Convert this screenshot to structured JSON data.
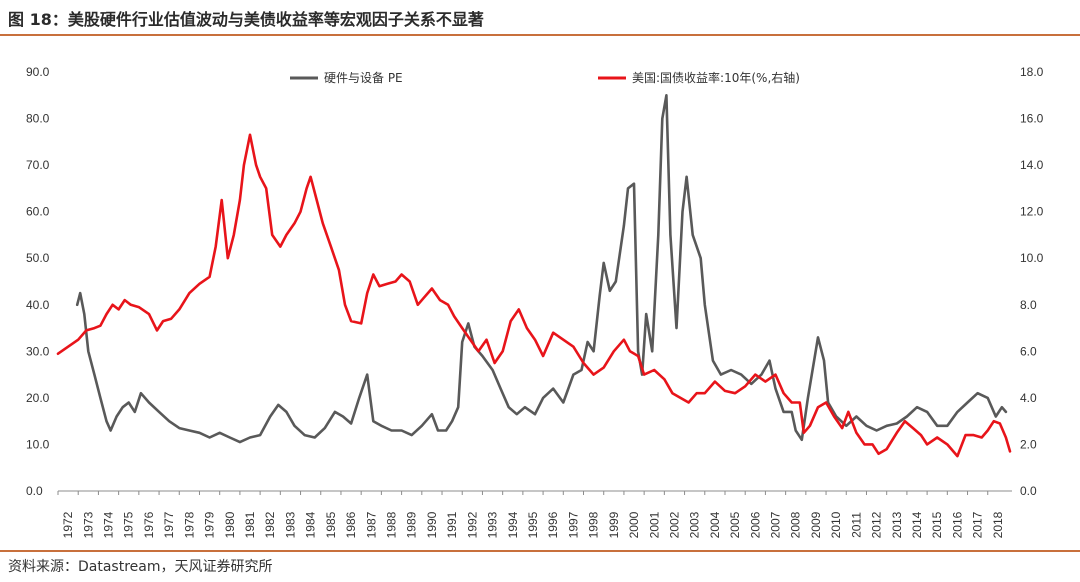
{
  "figure": {
    "title": "图 18：美股硬件行业估值波动与美债收益率等宏观因子关系不显著",
    "source": "资料来源：Datastream，天风证券研究所"
  },
  "chart_data": {
    "type": "line",
    "title": "图 18：美股硬件行业估值波动与美债收益率等宏观因子关系不显著",
    "x_ticks": [
      "1972",
      "1973",
      "1974",
      "1975",
      "1976",
      "1977",
      "1978",
      "1979",
      "1980",
      "1981",
      "1982",
      "1983",
      "1984",
      "1985",
      "1986",
      "1987",
      "1988",
      "1989",
      "1990",
      "1991",
      "1992",
      "1993",
      "1994",
      "1995",
      "1996",
      "1997",
      "1998",
      "1999",
      "2000",
      "2001",
      "2002",
      "2003",
      "2004",
      "2005",
      "2006",
      "2007",
      "2008",
      "2009",
      "2010",
      "2011",
      "2012",
      "2013",
      "2014",
      "2015",
      "2016",
      "2017",
      "2018"
    ],
    "x_range": [
      1972,
      2019.2
    ],
    "y_left": {
      "range": [
        0,
        90
      ],
      "ticks": [
        "0.0",
        "10.0",
        "20.0",
        "30.0",
        "40.0",
        "50.0",
        "60.0",
        "70.0",
        "80.0",
        "90.0"
      ]
    },
    "y_right": {
      "range": [
        0,
        18
      ],
      "ticks": [
        "0.0",
        "2.0",
        "4.0",
        "6.0",
        "8.0",
        "10.0",
        "12.0",
        "14.0",
        "16.0",
        "18.0"
      ]
    },
    "legend_position": "top",
    "grid": false,
    "series": [
      {
        "name": "硬件与设备 PE",
        "axis": "left",
        "color": "#595959",
        "points": [
          [
            1972.95,
            40
          ],
          [
            1973.1,
            42.5
          ],
          [
            1973.3,
            38
          ],
          [
            1973.5,
            30
          ],
          [
            1973.8,
            25
          ],
          [
            1974.1,
            20
          ],
          [
            1974.4,
            15
          ],
          [
            1974.6,
            13
          ],
          [
            1974.9,
            16
          ],
          [
            1975.2,
            18
          ],
          [
            1975.5,
            19
          ],
          [
            1975.8,
            17
          ],
          [
            1976.1,
            21
          ],
          [
            1976.5,
            19
          ],
          [
            1977,
            17
          ],
          [
            1977.5,
            15
          ],
          [
            1978,
            13.5
          ],
          [
            1978.5,
            13
          ],
          [
            1979,
            12.5
          ],
          [
            1979.5,
            11.5
          ],
          [
            1980,
            12.5
          ],
          [
            1980.5,
            11.5
          ],
          [
            1981,
            10.5
          ],
          [
            1981.5,
            11.5
          ],
          [
            1982,
            12
          ],
          [
            1982.5,
            16
          ],
          [
            1982.9,
            18.5
          ],
          [
            1983.3,
            17
          ],
          [
            1983.7,
            14
          ],
          [
            1984.2,
            12
          ],
          [
            1984.7,
            11.5
          ],
          [
            1985.2,
            13.5
          ],
          [
            1985.7,
            17
          ],
          [
            1986.1,
            16
          ],
          [
            1986.5,
            14.5
          ],
          [
            1986.9,
            20
          ],
          [
            1987.3,
            25
          ],
          [
            1987.6,
            15
          ],
          [
            1988,
            14
          ],
          [
            1988.5,
            13
          ],
          [
            1989,
            13
          ],
          [
            1989.5,
            12
          ],
          [
            1990,
            14
          ],
          [
            1990.5,
            16.5
          ],
          [
            1990.8,
            13
          ],
          [
            1991.2,
            13
          ],
          [
            1991.5,
            15
          ],
          [
            1991.8,
            18
          ],
          [
            1992,
            32
          ],
          [
            1992.3,
            36
          ],
          [
            1992.6,
            31
          ],
          [
            1993,
            29
          ],
          [
            1993.5,
            26
          ],
          [
            1993.9,
            22
          ],
          [
            1994.3,
            18
          ],
          [
            1994.7,
            16.5
          ],
          [
            1995.1,
            18
          ],
          [
            1995.6,
            16.5
          ],
          [
            1996,
            20
          ],
          [
            1996.5,
            22
          ],
          [
            1997,
            19
          ],
          [
            1997.5,
            25
          ],
          [
            1997.9,
            26
          ],
          [
            1998.2,
            32
          ],
          [
            1998.5,
            30
          ],
          [
            1998.8,
            42
          ],
          [
            1999,
            49
          ],
          [
            1999.3,
            43
          ],
          [
            1999.6,
            45
          ],
          [
            2000,
            57
          ],
          [
            2000.2,
            65
          ],
          [
            2000.5,
            66
          ],
          [
            2000.7,
            30
          ],
          [
            2000.9,
            25
          ],
          [
            2001.1,
            38
          ],
          [
            2001.4,
            30
          ],
          [
            2001.7,
            55
          ],
          [
            2001.9,
            80
          ],
          [
            2002.1,
            85
          ],
          [
            2002.3,
            55
          ],
          [
            2002.6,
            35
          ],
          [
            2002.9,
            60
          ],
          [
            2003.1,
            67.5
          ],
          [
            2003.4,
            55
          ],
          [
            2003.8,
            50
          ],
          [
            2004,
            40
          ],
          [
            2004.4,
            28
          ],
          [
            2004.8,
            25
          ],
          [
            2005.3,
            26
          ],
          [
            2005.8,
            25
          ],
          [
            2006.3,
            23
          ],
          [
            2006.8,
            25
          ],
          [
            2007.2,
            28
          ],
          [
            2007.5,
            22
          ],
          [
            2007.9,
            17
          ],
          [
            2008.3,
            17
          ],
          [
            2008.5,
            13
          ],
          [
            2008.8,
            11
          ],
          [
            2009.1,
            20
          ],
          [
            2009.6,
            33
          ],
          [
            2009.9,
            28
          ],
          [
            2010.1,
            19
          ],
          [
            2010.5,
            16
          ],
          [
            2011,
            14
          ],
          [
            2011.5,
            16
          ],
          [
            2012,
            14
          ],
          [
            2012.5,
            13
          ],
          [
            2013,
            14
          ],
          [
            2013.5,
            14.5
          ],
          [
            2014,
            16
          ],
          [
            2014.5,
            18
          ],
          [
            2015,
            17
          ],
          [
            2015.5,
            14
          ],
          [
            2016,
            14
          ],
          [
            2016.5,
            17
          ],
          [
            2017,
            19
          ],
          [
            2017.5,
            21
          ],
          [
            2018,
            20
          ],
          [
            2018.4,
            16
          ],
          [
            2018.7,
            18
          ],
          [
            2018.9,
            17
          ]
        ]
      },
      {
        "name": "美国:国债收益率:10年(%,右轴)",
        "axis": "right",
        "color": "#e8141a",
        "points": [
          [
            1972,
            5.9
          ],
          [
            1972.5,
            6.2
          ],
          [
            1973,
            6.5
          ],
          [
            1973.4,
            6.9
          ],
          [
            1973.8,
            7
          ],
          [
            1974.1,
            7.1
          ],
          [
            1974.4,
            7.6
          ],
          [
            1974.7,
            8
          ],
          [
            1975,
            7.8
          ],
          [
            1975.3,
            8.2
          ],
          [
            1975.6,
            8
          ],
          [
            1976,
            7.9
          ],
          [
            1976.5,
            7.6
          ],
          [
            1976.9,
            6.9
          ],
          [
            1977.2,
            7.3
          ],
          [
            1977.6,
            7.4
          ],
          [
            1978,
            7.8
          ],
          [
            1978.5,
            8.5
          ],
          [
            1979,
            8.9
          ],
          [
            1979.5,
            9.2
          ],
          [
            1979.8,
            10.5
          ],
          [
            1980.1,
            12.5
          ],
          [
            1980.4,
            10
          ],
          [
            1980.7,
            11
          ],
          [
            1981,
            12.5
          ],
          [
            1981.2,
            14
          ],
          [
            1981.5,
            15.3
          ],
          [
            1981.8,
            14
          ],
          [
            1982,
            13.5
          ],
          [
            1982.3,
            13
          ],
          [
            1982.6,
            11
          ],
          [
            1983,
            10.5
          ],
          [
            1983.3,
            11
          ],
          [
            1983.7,
            11.5
          ],
          [
            1984,
            12
          ],
          [
            1984.3,
            13
          ],
          [
            1984.5,
            13.5
          ],
          [
            1984.8,
            12.5
          ],
          [
            1985.1,
            11.5
          ],
          [
            1985.5,
            10.5
          ],
          [
            1985.9,
            9.5
          ],
          [
            1986.2,
            8
          ],
          [
            1986.5,
            7.3
          ],
          [
            1987,
            7.2
          ],
          [
            1987.3,
            8.5
          ],
          [
            1987.6,
            9.3
          ],
          [
            1987.9,
            8.8
          ],
          [
            1988.3,
            8.9
          ],
          [
            1988.7,
            9
          ],
          [
            1989,
            9.3
          ],
          [
            1989.4,
            9
          ],
          [
            1989.8,
            8
          ],
          [
            1990.1,
            8.3
          ],
          [
            1990.5,
            8.7
          ],
          [
            1990.9,
            8.2
          ],
          [
            1991.3,
            8
          ],
          [
            1991.6,
            7.5
          ],
          [
            1992,
            7
          ],
          [
            1992.4,
            6.5
          ],
          [
            1992.8,
            6
          ],
          [
            1993.2,
            6.5
          ],
          [
            1993.6,
            5.5
          ],
          [
            1994,
            6
          ],
          [
            1994.4,
            7.3
          ],
          [
            1994.8,
            7.8
          ],
          [
            1995.2,
            7
          ],
          [
            1995.6,
            6.5
          ],
          [
            1996,
            5.8
          ],
          [
            1996.5,
            6.8
          ],
          [
            1997,
            6.5
          ],
          [
            1997.5,
            6.2
          ],
          [
            1998,
            5.5
          ],
          [
            1998.5,
            5
          ],
          [
            1999,
            5.3
          ],
          [
            1999.5,
            6
          ],
          [
            2000,
            6.5
          ],
          [
            2000.3,
            6
          ],
          [
            2000.7,
            5.8
          ],
          [
            2001,
            5
          ],
          [
            2001.5,
            5.2
          ],
          [
            2002,
            4.8
          ],
          [
            2002.4,
            4.2
          ],
          [
            2002.8,
            4
          ],
          [
            2003.2,
            3.8
          ],
          [
            2003.6,
            4.2
          ],
          [
            2004,
            4.2
          ],
          [
            2004.5,
            4.7
          ],
          [
            2005,
            4.3
          ],
          [
            2005.5,
            4.2
          ],
          [
            2006,
            4.5
          ],
          [
            2006.5,
            5
          ],
          [
            2007,
            4.7
          ],
          [
            2007.5,
            5
          ],
          [
            2007.9,
            4.2
          ],
          [
            2008.3,
            3.8
          ],
          [
            2008.7,
            3.8
          ],
          [
            2008.9,
            2.5
          ],
          [
            2009.2,
            2.8
          ],
          [
            2009.6,
            3.6
          ],
          [
            2010,
            3.8
          ],
          [
            2010.4,
            3.2
          ],
          [
            2010.8,
            2.7
          ],
          [
            2011.1,
            3.4
          ],
          [
            2011.5,
            2.5
          ],
          [
            2011.9,
            2
          ],
          [
            2012.3,
            2
          ],
          [
            2012.6,
            1.6
          ],
          [
            2013,
            1.8
          ],
          [
            2013.5,
            2.5
          ],
          [
            2013.9,
            3
          ],
          [
            2014.3,
            2.7
          ],
          [
            2014.7,
            2.4
          ],
          [
            2015,
            2
          ],
          [
            2015.5,
            2.3
          ],
          [
            2016,
            2
          ],
          [
            2016.5,
            1.5
          ],
          [
            2016.9,
            2.4
          ],
          [
            2017.3,
            2.4
          ],
          [
            2017.7,
            2.3
          ],
          [
            2018,
            2.6
          ],
          [
            2018.3,
            3
          ],
          [
            2018.6,
            2.9
          ],
          [
            2018.9,
            2.3
          ],
          [
            2019.1,
            1.7
          ]
        ]
      }
    ]
  }
}
